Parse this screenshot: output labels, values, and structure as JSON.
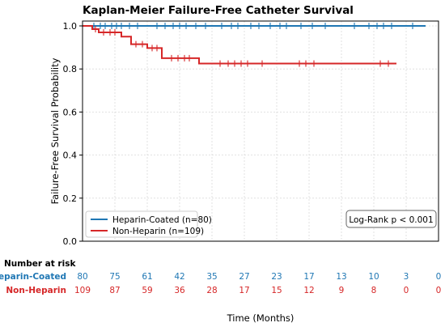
{
  "chart_data": {
    "type": "line",
    "title": "Kaplan-Meier Failure-Free Catheter Survival",
    "xlabel": "Time (Months)",
    "ylabel": "Failure-Free Survival Probability",
    "ylim": [
      0.0,
      1.0
    ],
    "yticks": [
      "0.0",
      "0.2",
      "0.4",
      "0.6",
      "0.8",
      "1.0"
    ],
    "xlim": [
      0,
      11
    ],
    "grid": true,
    "legend_placement": "bottom-left",
    "annotation": "Log-Rank p < 0.001",
    "series": [
      {
        "name": "Heparin-Coated (n=80)",
        "color": "#1f77b4",
        "steps": [
          [
            0,
            1.0
          ],
          [
            10.6,
            1.0
          ]
        ],
        "censor_x": [
          0.35,
          0.55,
          0.7,
          0.9,
          1.05,
          1.2,
          1.45,
          1.7,
          2.3,
          2.55,
          2.8,
          3.0,
          3.2,
          3.5,
          3.8,
          4.3,
          4.6,
          4.8,
          5.2,
          5.45,
          5.8,
          6.1,
          6.3,
          6.75,
          7.1,
          7.5,
          8.4,
          8.85,
          9.1,
          9.3,
          9.55,
          10.2
        ]
      },
      {
        "name": "Non-Heparin (n=109)",
        "color": "#d62728",
        "steps": [
          [
            0,
            1.0
          ],
          [
            0.3,
            0.985
          ],
          [
            0.5,
            0.97
          ],
          [
            1.2,
            0.95
          ],
          [
            1.5,
            0.915
          ],
          [
            2.0,
            0.897
          ],
          [
            2.45,
            0.85
          ],
          [
            3.6,
            0.825
          ],
          [
            9.7,
            0.825
          ]
        ],
        "censor_x": [
          0.4,
          0.65,
          0.85,
          1.0,
          1.65,
          1.85,
          2.15,
          2.3,
          2.75,
          2.95,
          3.15,
          3.3,
          4.25,
          4.5,
          4.7,
          4.9,
          5.1,
          5.55,
          6.7,
          6.9,
          7.15,
          9.2,
          9.45
        ]
      }
    ]
  },
  "risk_table": {
    "heading": "Number at risk",
    "rows": [
      {
        "label": "Heparin-Coated",
        "color": "#1f77b4",
        "values": [
          "80",
          "75",
          "61",
          "42",
          "35",
          "27",
          "23",
          "17",
          "13",
          "10",
          "3",
          "0"
        ]
      },
      {
        "label": "Non-Heparin",
        "color": "#d62728",
        "values": [
          "109",
          "87",
          "59",
          "36",
          "28",
          "17",
          "15",
          "12",
          "9",
          "8",
          "0",
          "0"
        ]
      }
    ]
  }
}
